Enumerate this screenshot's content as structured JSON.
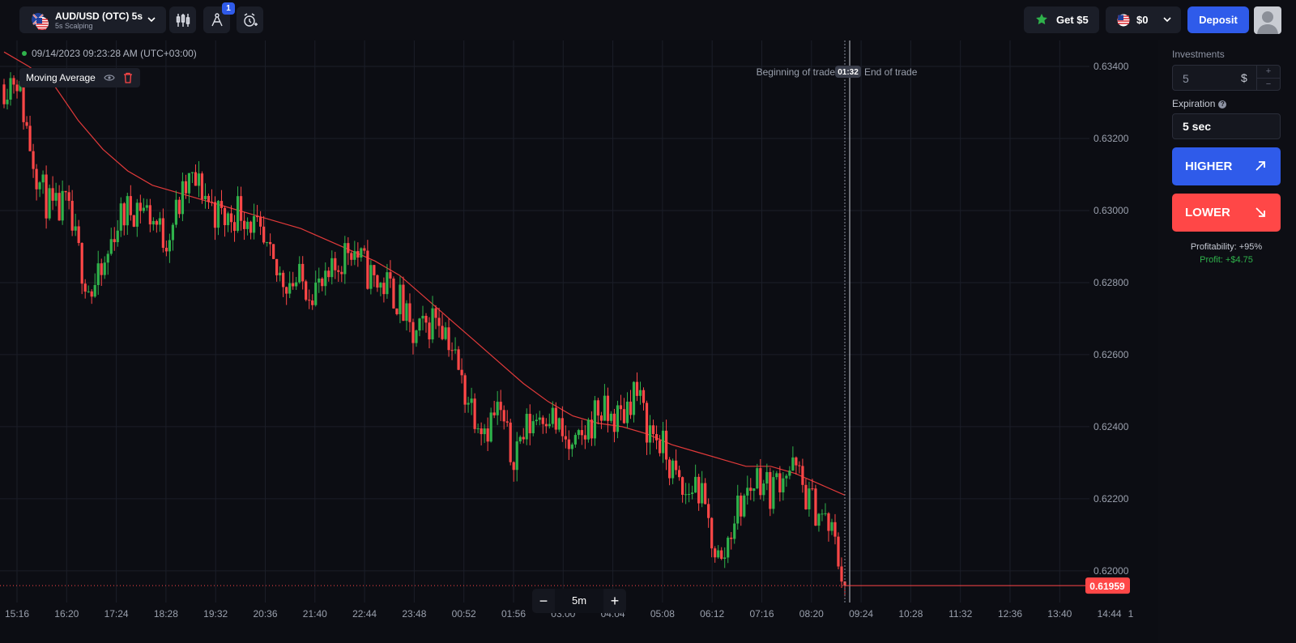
{
  "header": {
    "asset_name": "AUD/USD (OTC) 5s",
    "asset_sub": "5s Scalping",
    "drawings_badge": "1",
    "bonus_label": "Get $5",
    "balance": "$0",
    "deposit_label": "Deposit"
  },
  "chart_info": {
    "datetime": "09/14/2023  09:23:28 AM  (UTC+03:00)",
    "indicator": "Moving Average",
    "trade_start_label": "Beginning of trade",
    "trade_timer": "01:32",
    "trade_end_label": "End of trade",
    "timeframe": "5m",
    "zoom_out": "−",
    "zoom_in": "+"
  },
  "panel": {
    "investments_label": "Investments",
    "investment_value": "5",
    "investment_currency": "$",
    "expiration_label": "Expiration",
    "expiration_value": "5 sec",
    "higher_label": "HIGHER",
    "lower_label": "LOWER",
    "profitability": "Profitability: +95%",
    "profit": "Profit: +$4.75"
  },
  "colors": {
    "up": "#2fb24b",
    "down": "#ff4747",
    "accent": "#2f5bea",
    "moving_average": "#e23a3a"
  },
  "chart_data": {
    "type": "candlestick",
    "y_ticks": [
      0.634,
      0.632,
      0.63,
      0.628,
      0.626,
      0.624,
      0.622,
      0.62
    ],
    "y_tick_labels": [
      "0.63400",
      "0.63200",
      "0.63000",
      "0.62800",
      "0.62600",
      "0.62400",
      "0.62200",
      "0.62000"
    ],
    "ylim": [
      0.61912,
      0.63472
    ],
    "x_tick_labels": [
      "15:16",
      "16:20",
      "17:24",
      "18:28",
      "19:32",
      "20:36",
      "21:40",
      "22:44",
      "23:48",
      "00:52",
      "01:56",
      "03:00",
      "04:04",
      "05:08",
      "06:12",
      "07:16",
      "08:20",
      "09:24",
      "10:28",
      "11:32",
      "12:36",
      "13:40",
      "14:44",
      "1"
    ],
    "current_price": "0.61959",
    "current_price_value": 0.61959,
    "moving_average": [
      [
        0,
        0.6344
      ],
      [
        2,
        0.634
      ],
      [
        4,
        0.6335
      ],
      [
        6,
        0.6325
      ],
      [
        8,
        0.6317
      ],
      [
        10,
        0.6311
      ],
      [
        12,
        0.6307
      ],
      [
        14,
        0.6305
      ],
      [
        16,
        0.6303
      ],
      [
        18,
        0.6301
      ],
      [
        20,
        0.6299
      ],
      [
        22,
        0.6297
      ],
      [
        24,
        0.6295
      ],
      [
        26,
        0.6292
      ],
      [
        28,
        0.6289
      ],
      [
        30,
        0.6286
      ],
      [
        32,
        0.6282
      ],
      [
        34,
        0.6276
      ],
      [
        36,
        0.627
      ],
      [
        38,
        0.6264
      ],
      [
        40,
        0.6258
      ],
      [
        42,
        0.6252
      ],
      [
        44,
        0.6247
      ],
      [
        46,
        0.6243
      ],
      [
        48,
        0.6241
      ],
      [
        50,
        0.624
      ],
      [
        52,
        0.6238
      ],
      [
        54,
        0.6235
      ],
      [
        56,
        0.6233
      ],
      [
        58,
        0.6231
      ],
      [
        60,
        0.6229
      ],
      [
        62,
        0.6229
      ],
      [
        64,
        0.6227
      ],
      [
        66,
        0.6224
      ],
      [
        68,
        0.6221
      ]
    ],
    "close_path": [
      [
        0,
        0.6335
      ],
      [
        1,
        0.6338
      ],
      [
        2,
        0.632
      ],
      [
        3,
        0.6306
      ],
      [
        4,
        0.6299
      ],
      [
        5,
        0.6301
      ],
      [
        6,
        0.6288
      ],
      [
        7,
        0.6277
      ],
      [
        8,
        0.6282
      ],
      [
        9,
        0.6296
      ],
      [
        10,
        0.63
      ],
      [
        11,
        0.6302
      ],
      [
        12,
        0.6298
      ],
      [
        13,
        0.6292
      ],
      [
        14,
        0.63
      ],
      [
        15,
        0.6308
      ],
      [
        16,
        0.6306
      ],
      [
        17,
        0.63
      ],
      [
        18,
        0.6297
      ],
      [
        19,
        0.6301
      ],
      [
        20,
        0.6297
      ],
      [
        21,
        0.6289
      ],
      [
        22,
        0.6282
      ],
      [
        23,
        0.6281
      ],
      [
        24,
        0.628
      ],
      [
        25,
        0.6279
      ],
      [
        26,
        0.6278
      ],
      [
        27,
        0.6285
      ],
      [
        28,
        0.6291
      ],
      [
        29,
        0.6285
      ],
      [
        30,
        0.628
      ],
      [
        31,
        0.6279
      ],
      [
        32,
        0.6275
      ],
      [
        33,
        0.6264
      ],
      [
        34,
        0.6267
      ],
      [
        35,
        0.6272
      ],
      [
        36,
        0.6265
      ],
      [
        37,
        0.6252
      ],
      [
        38,
        0.6245
      ],
      [
        39,
        0.624
      ],
      [
        40,
        0.6245
      ],
      [
        41,
        0.6232
      ],
      [
        42,
        0.6238
      ],
      [
        43,
        0.6243
      ],
      [
        44,
        0.6245
      ],
      [
        45,
        0.6238
      ],
      [
        46,
        0.6232
      ],
      [
        47,
        0.6238
      ],
      [
        48,
        0.6245
      ],
      [
        49,
        0.6242
      ],
      [
        50,
        0.6243
      ],
      [
        51,
        0.6251
      ],
      [
        52,
        0.624
      ],
      [
        53,
        0.6236
      ],
      [
        54,
        0.6228
      ],
      [
        55,
        0.622
      ],
      [
        56,
        0.6225
      ],
      [
        57,
        0.6212
      ],
      [
        58,
        0.6201
      ],
      [
        59,
        0.6215
      ],
      [
        60,
        0.6221
      ],
      [
        61,
        0.6227
      ],
      [
        62,
        0.6222
      ],
      [
        63,
        0.6228
      ],
      [
        64,
        0.6228
      ],
      [
        65,
        0.622
      ],
      [
        66,
        0.6216
      ],
      [
        67,
        0.621
      ],
      [
        68,
        0.6196
      ]
    ]
  }
}
